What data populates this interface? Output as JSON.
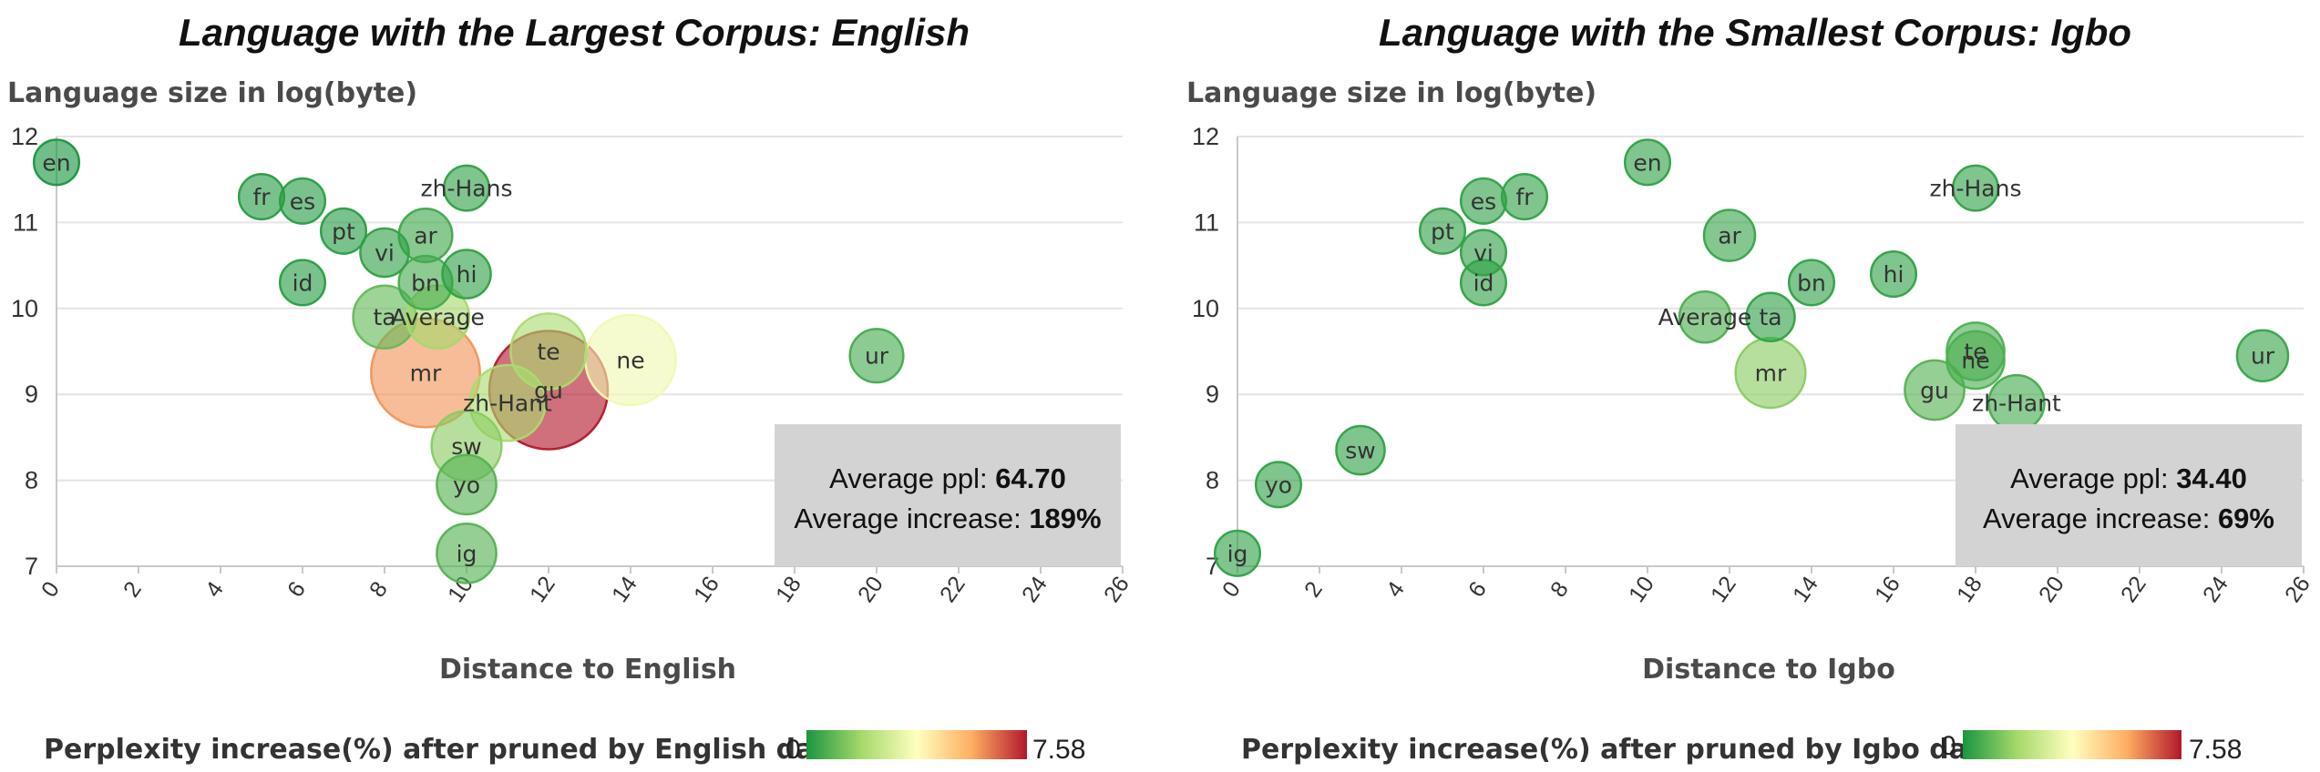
{
  "colors": {
    "scale": [
      "#1a9641",
      "#a6d96a",
      "#ffffbf",
      "#fdae61",
      "#b2182b"
    ],
    "grid": "#e4e4e4",
    "stats_box": "#d3d3d3"
  },
  "chart_data": [
    {
      "type": "scatter",
      "title": "Language with the Largest Corpus: English",
      "ylabel": "Language size in log(byte)",
      "xlabel": "Distance to English",
      "xlim": [
        0,
        26
      ],
      "ylim": [
        7,
        12
      ],
      "xticks": [
        "0",
        "2",
        "4",
        "6",
        "8",
        "10",
        "12",
        "14",
        "16",
        "18",
        "20",
        "22",
        "24",
        "26"
      ],
      "yticks": [
        "7",
        "8",
        "9",
        "10",
        "11",
        "12"
      ],
      "grid": true,
      "legend": {
        "title": "Perplexity increase(%) after pruned by English data",
        "min": "0",
        "max": "7.58",
        "position": "bottom"
      },
      "stats": {
        "ppl_label": "Average ppl:",
        "ppl_value": "64.70",
        "inc_label": "Average increase:",
        "inc_value": "189%",
        "position": "bottom-right"
      },
      "points": [
        {
          "label": "en",
          "x": 0,
          "y": 11.7,
          "increase": 0.0,
          "size": 0.2
        },
        {
          "label": "fr",
          "x": 5,
          "y": 11.3,
          "increase": 0.2,
          "size": 0.2
        },
        {
          "label": "es",
          "x": 6,
          "y": 11.25,
          "increase": 0.2,
          "size": 0.2
        },
        {
          "label": "pt",
          "x": 7,
          "y": 10.9,
          "increase": 0.2,
          "size": 0.2
        },
        {
          "label": "vi",
          "x": 8,
          "y": 10.65,
          "increase": 0.3,
          "size": 0.3
        },
        {
          "label": "id",
          "x": 6,
          "y": 10.3,
          "increase": 0.2,
          "size": 0.2
        },
        {
          "label": "zh-Hans",
          "x": 10,
          "y": 11.4,
          "increase": 0.3,
          "size": 0.2
        },
        {
          "label": "ar",
          "x": 9,
          "y": 10.85,
          "increase": 0.5,
          "size": 0.5
        },
        {
          "label": "bn",
          "x": 9,
          "y": 10.3,
          "increase": 0.6,
          "size": 0.5
        },
        {
          "label": "hi",
          "x": 10,
          "y": 10.4,
          "increase": 0.3,
          "size": 0.3
        },
        {
          "label": "ta",
          "x": 8,
          "y": 9.9,
          "increase": 1.0,
          "size": 1.0
        },
        {
          "label": "Average",
          "x": 9.3,
          "y": 9.9,
          "increase": 1.89,
          "size": 1.0
        },
        {
          "label": "mr",
          "x": 9,
          "y": 9.25,
          "increase": 6.0,
          "size": 6.0
        },
        {
          "label": "te",
          "x": 12,
          "y": 9.5,
          "increase": 2.0,
          "size": 2.0
        },
        {
          "label": "gu",
          "x": 12,
          "y": 9.05,
          "increase": 7.58,
          "size": 7.58
        },
        {
          "label": "ne",
          "x": 14,
          "y": 9.4,
          "increase": 3.5,
          "size": 3.5
        },
        {
          "label": "zh-Hant",
          "x": 11,
          "y": 8.9,
          "increase": 2.0,
          "size": 2.0
        },
        {
          "label": "sw",
          "x": 10,
          "y": 8.4,
          "increase": 1.5,
          "size": 1.5
        },
        {
          "label": "yo",
          "x": 10,
          "y": 7.95,
          "increase": 0.8,
          "size": 0.8
        },
        {
          "label": "ig",
          "x": 10,
          "y": 7.15,
          "increase": 0.8,
          "size": 0.8
        },
        {
          "label": "ur",
          "x": 20,
          "y": 9.45,
          "increase": 0.6,
          "size": 0.5
        }
      ]
    },
    {
      "type": "scatter",
      "title": "Language with the Smallest Corpus: Igbo",
      "ylabel": "Language size in log(byte)",
      "xlabel": "Distance to Igbo",
      "xlim": [
        0,
        26
      ],
      "ylim": [
        7,
        12
      ],
      "xticks": [
        "0",
        "2",
        "4",
        "6",
        "8",
        "10",
        "12",
        "14",
        "16",
        "18",
        "20",
        "22",
        "24",
        "26"
      ],
      "yticks": [
        "7",
        "8",
        "9",
        "10",
        "11",
        "12"
      ],
      "grid": true,
      "legend": {
        "title": "Perplexity increase(%) after pruned by Igbo data",
        "min": "0",
        "max": "7.58",
        "position": "bottom"
      },
      "stats": {
        "ppl_label": "Average ppl:",
        "ppl_value": "34.40",
        "inc_label": "Average increase:",
        "inc_value": "69%",
        "position": "bottom-right"
      },
      "points": [
        {
          "label": "en",
          "x": 10,
          "y": 11.7,
          "increase": 0.3,
          "size": 0.2
        },
        {
          "label": "es",
          "x": 6,
          "y": 11.25,
          "increase": 0.3,
          "size": 0.2
        },
        {
          "label": "fr",
          "x": 7,
          "y": 11.3,
          "increase": 0.3,
          "size": 0.2
        },
        {
          "label": "pt",
          "x": 5,
          "y": 10.9,
          "increase": 0.3,
          "size": 0.2
        },
        {
          "label": "vi",
          "x": 6,
          "y": 10.65,
          "increase": 0.3,
          "size": 0.2
        },
        {
          "label": "id",
          "x": 6,
          "y": 10.3,
          "increase": 0.3,
          "size": 0.2
        },
        {
          "label": "zh-Hans",
          "x": 18,
          "y": 11.4,
          "increase": 0.3,
          "size": 0.2
        },
        {
          "label": "ar",
          "x": 12,
          "y": 10.85,
          "increase": 0.4,
          "size": 0.4
        },
        {
          "label": "bn",
          "x": 14,
          "y": 10.3,
          "increase": 0.3,
          "size": 0.2
        },
        {
          "label": "hi",
          "x": 16,
          "y": 10.4,
          "increase": 0.3,
          "size": 0.2
        },
        {
          "label": "Average",
          "x": 11.4,
          "y": 9.9,
          "increase": 0.69,
          "size": 0.4
        },
        {
          "label": "ta",
          "x": 13,
          "y": 9.9,
          "increase": 0.3,
          "size": 0.3
        },
        {
          "label": "mr",
          "x": 13,
          "y": 9.25,
          "increase": 1.5,
          "size": 1.5
        },
        {
          "label": "te",
          "x": 18,
          "y": 9.5,
          "increase": 0.7,
          "size": 0.7
        },
        {
          "label": "ne",
          "x": 18,
          "y": 9.4,
          "increase": 0.7,
          "size": 0.7
        },
        {
          "label": "gu",
          "x": 17,
          "y": 9.05,
          "increase": 0.8,
          "size": 0.8
        },
        {
          "label": "zh-Hant",
          "x": 19,
          "y": 8.9,
          "increase": 0.6,
          "size": 0.6
        },
        {
          "label": "sw",
          "x": 3,
          "y": 8.35,
          "increase": 0.3,
          "size": 0.3
        },
        {
          "label": "yo",
          "x": 1,
          "y": 7.95,
          "increase": 0.3,
          "size": 0.2
        },
        {
          "label": "ig",
          "x": 0,
          "y": 7.15,
          "increase": 0.3,
          "size": 0.2
        },
        {
          "label": "ur",
          "x": 25,
          "y": 9.45,
          "increase": 0.4,
          "size": 0.4
        }
      ]
    }
  ]
}
